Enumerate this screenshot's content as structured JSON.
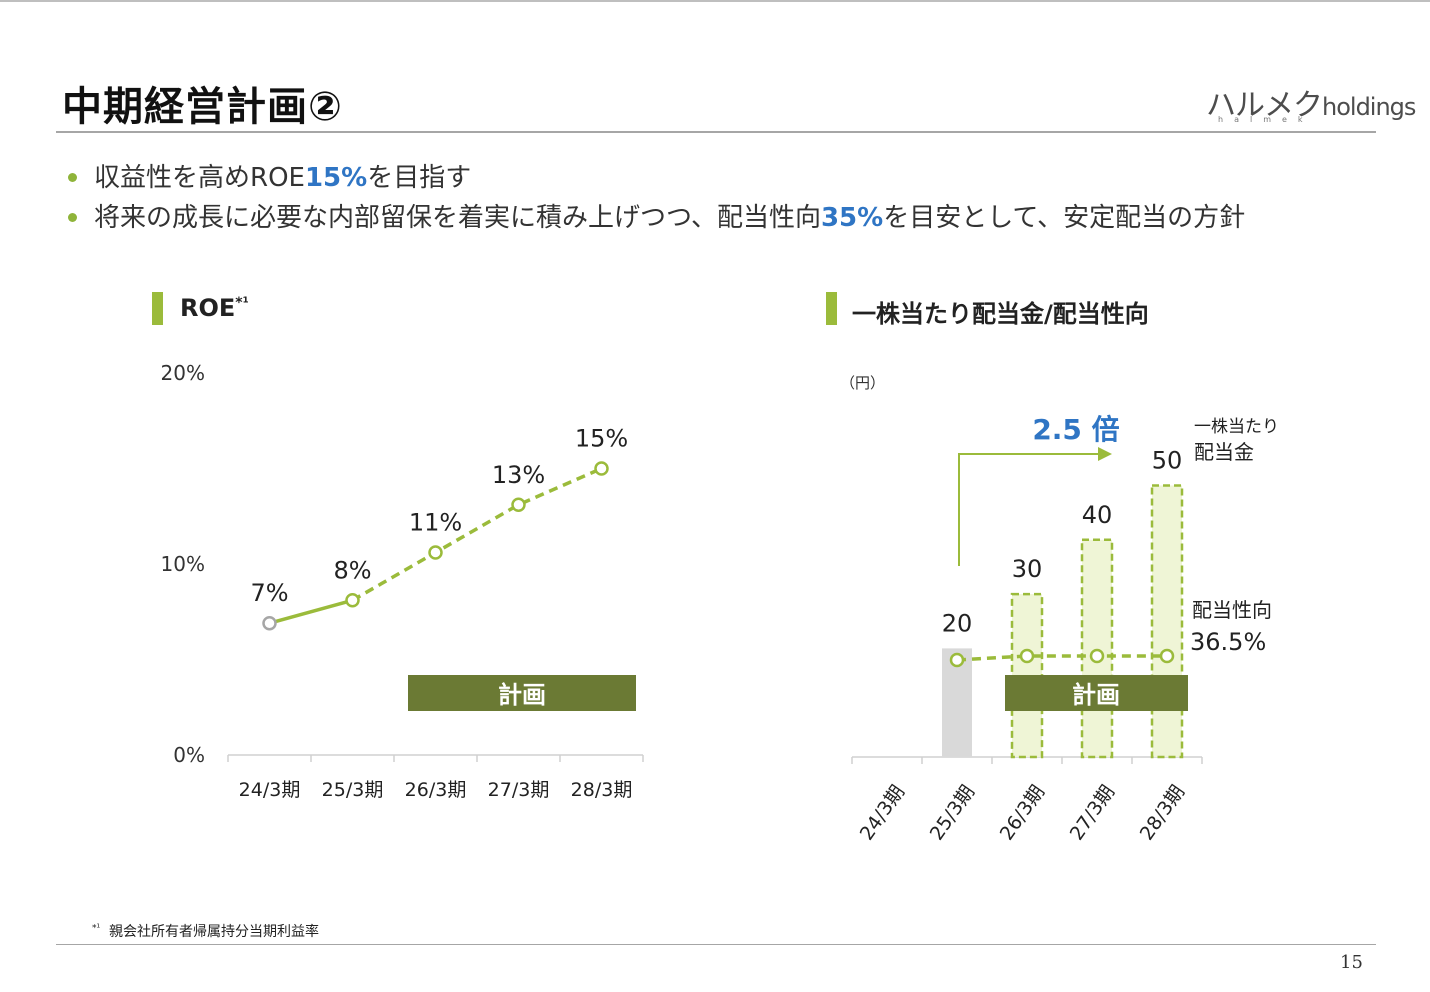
{
  "header": {
    "title": "中期経営計画②",
    "logo_main": "ハルメク",
    "logo_suffix": "holdings",
    "logo_sub": "halmek"
  },
  "bullets": [
    {
      "pre": "収益性を高めROE",
      "hl": "15%",
      "post": "を目指す"
    },
    {
      "pre": "将来の成長に必要な内部留保を着実に積み上げつつ、配当性向",
      "hl": "35%",
      "post": "を目安として、安定配当の方針"
    }
  ],
  "colors": {
    "accent_green": "#9bbb3b",
    "plan_box": "#6b7a34",
    "highlight_blue": "#2f75c4",
    "actual_gray": "#d9d9d9"
  },
  "chart_data": [
    {
      "type": "line",
      "title": "ROE",
      "title_mark": "*¹",
      "categories": [
        "24/3期",
        "25/3期",
        "26/3期",
        "27/3期",
        "28/3期"
      ],
      "values": [
        7,
        8,
        11,
        13,
        15
      ],
      "point_values": [
        6.9,
        8.1,
        10.6,
        13.1,
        15.0
      ],
      "data_labels": [
        "7%",
        "8%",
        "11%",
        "13%",
        "15%"
      ],
      "yticks": [
        "0%",
        "10%",
        "20%"
      ],
      "ylim": [
        0,
        20
      ],
      "plan_from_index": 1,
      "plan_label": "計画"
    },
    {
      "type": "bar",
      "title": "一株当たり配当金/配当性向",
      "unit": "（円）",
      "categories": [
        "24/3期",
        "25/3期",
        "26/3期",
        "27/3期",
        "28/3期"
      ],
      "dividend": [
        null,
        20,
        30,
        40,
        50
      ],
      "payout_line_level": 36.5,
      "payout_label": "配当性向",
      "payout_value_label": "36.5%",
      "dividend_series_label": [
        "一株当たり",
        "配当金"
      ],
      "growth_label": "2.5 倍",
      "plan_label": "計画",
      "ylim": [
        0,
        70
      ]
    }
  ],
  "footnote": {
    "mark": "*¹",
    "text": "親会社所有者帰属持分当期利益率"
  },
  "page_number": "15"
}
